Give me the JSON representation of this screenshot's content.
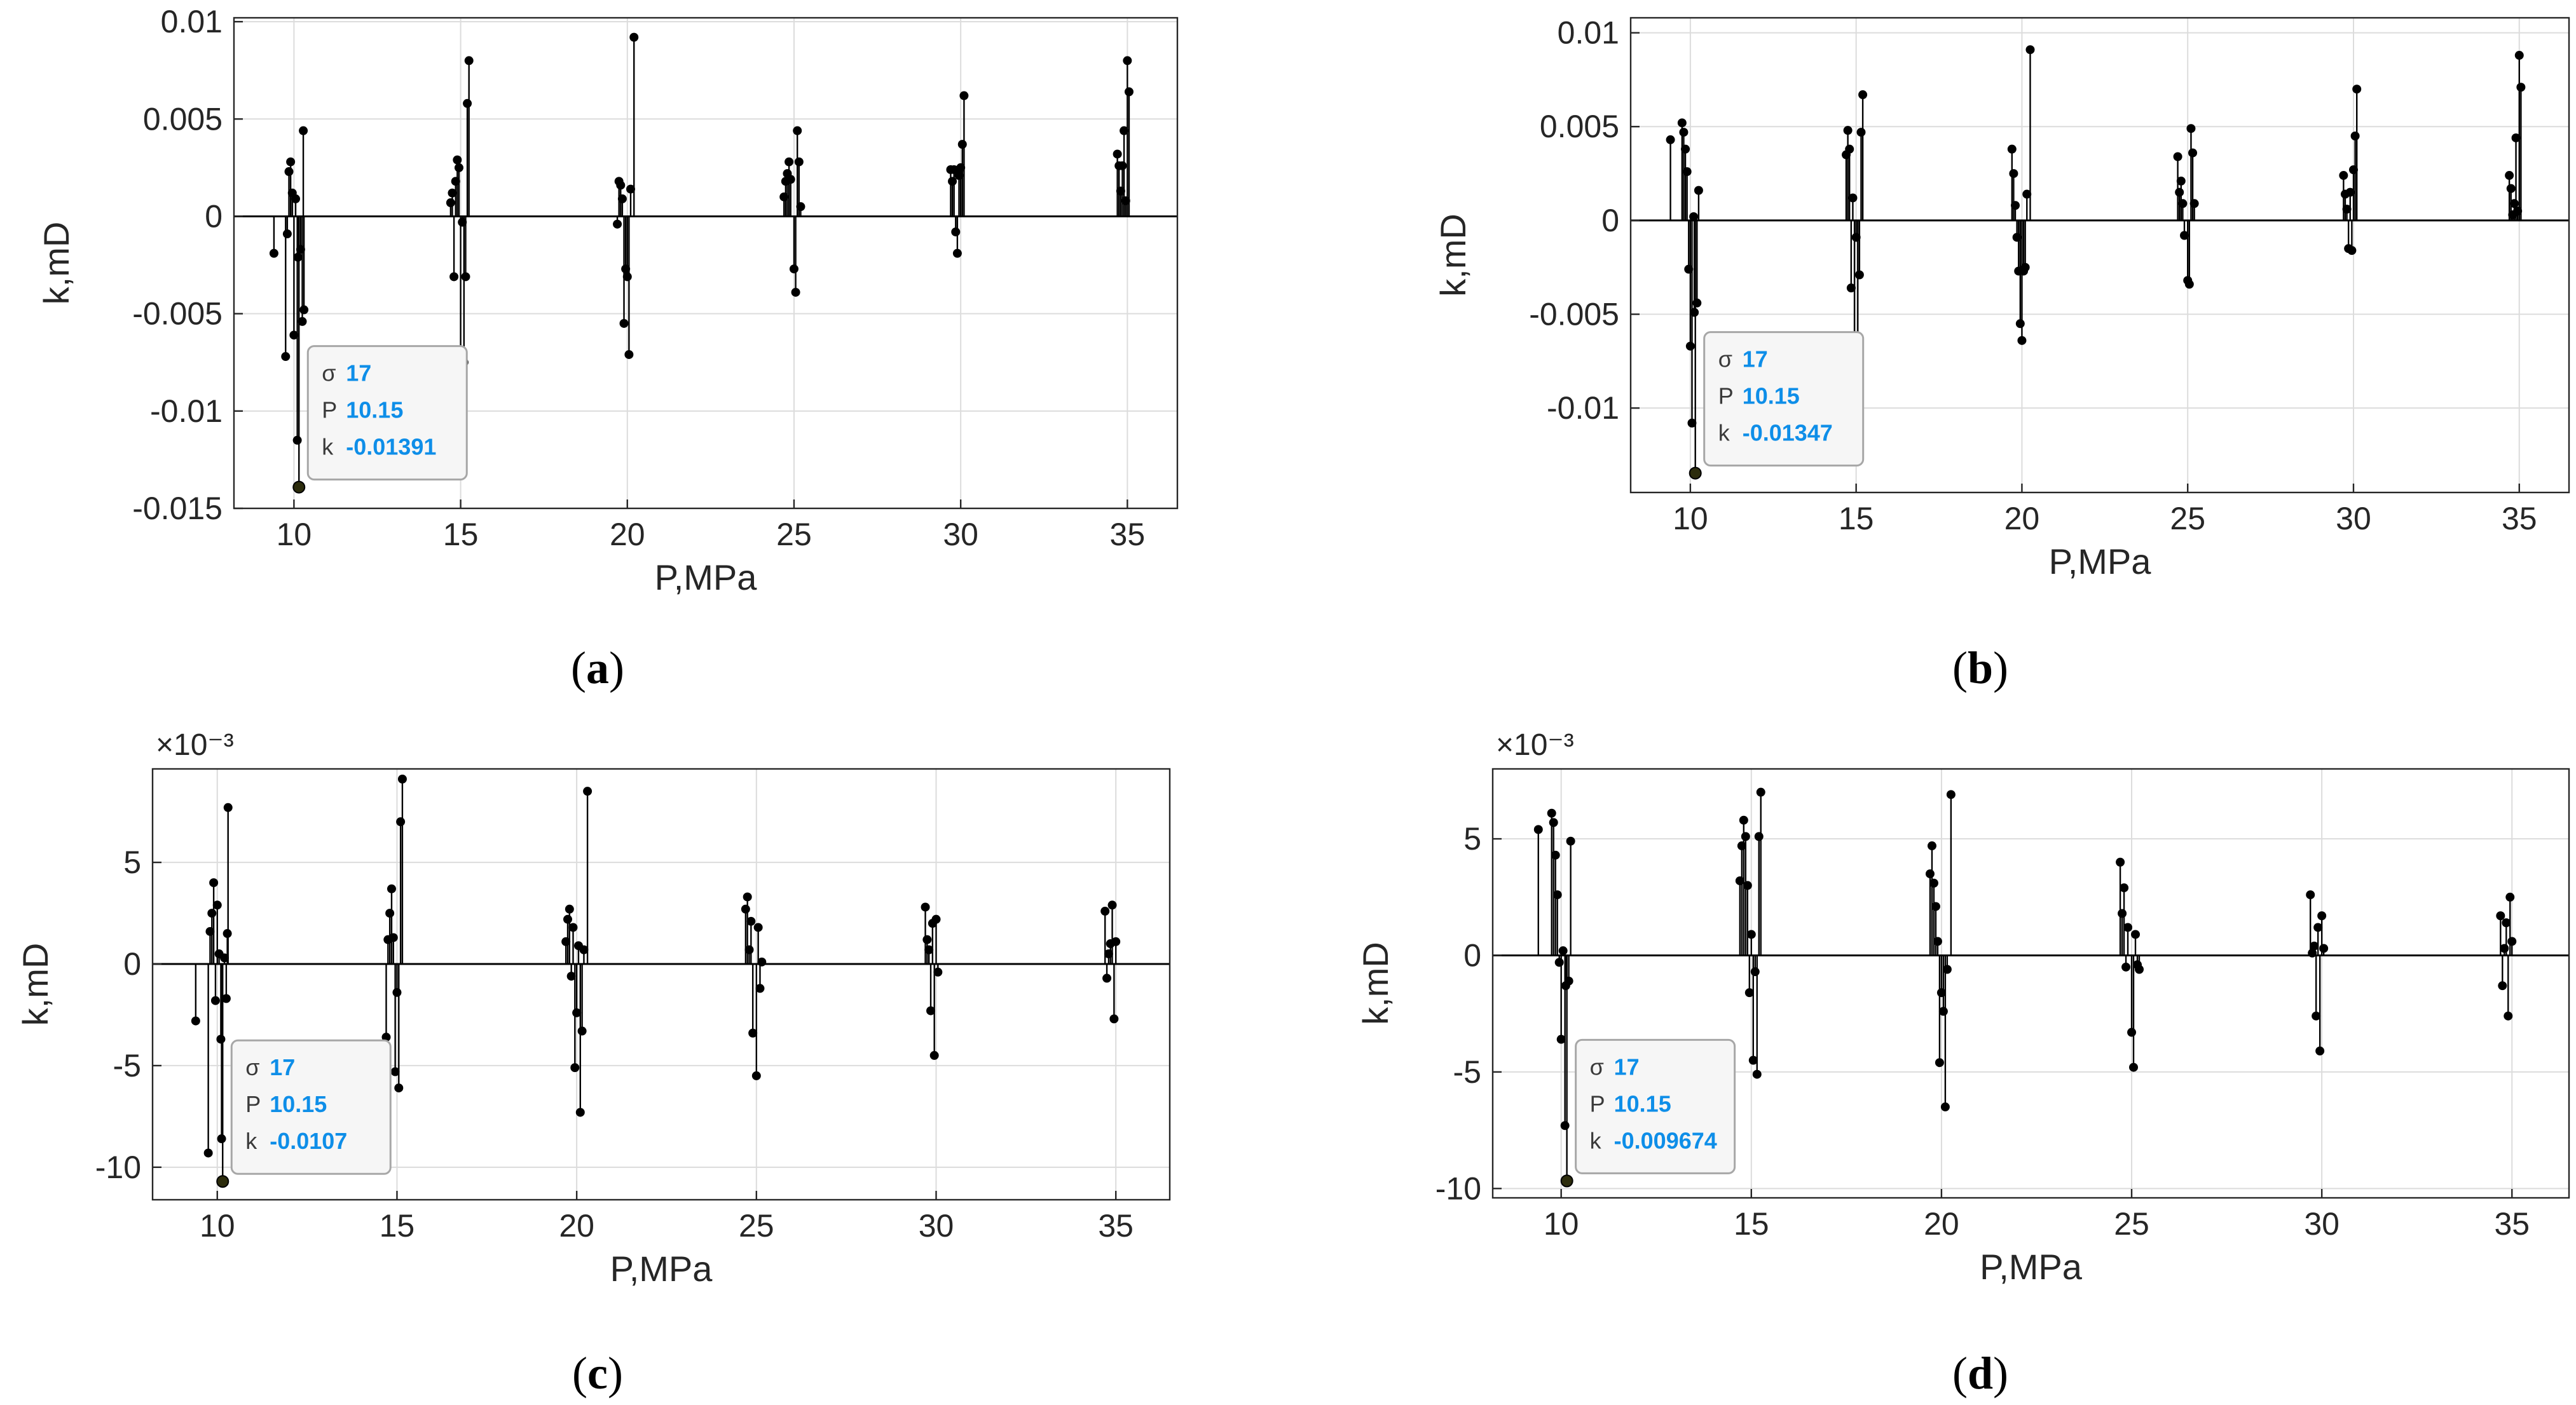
{
  "colors": {
    "axis": "#262626",
    "grid": "#dcdcdc",
    "stem": "#000000",
    "marker": "#000000",
    "baseline": "#000000",
    "datatip_value": "#0e8ee8",
    "datatip_label": "#3a3a3a",
    "datatip_border": "#a7a7a7",
    "selected_marker": "#2c2c0c"
  },
  "chart_data": [
    {
      "id": "a",
      "type": "stem",
      "caption": "a",
      "xlabel": "P,MPa",
      "ylabel": "k,mD",
      "xlim": [
        8.2,
        36.5
      ],
      "ylim": [
        -0.015,
        0.0102
      ],
      "xticks": [
        10,
        15,
        20,
        25,
        30,
        35
      ],
      "xtick_labels": [
        "10",
        "15",
        "20",
        "25",
        "30",
        "35"
      ],
      "yticks": [
        -0.015,
        -0.01,
        -0.005,
        0,
        0.005,
        0.01
      ],
      "ytick_labels": [
        "-0.015",
        "-0.01",
        "-0.005",
        "0",
        "0.005",
        "0.01"
      ],
      "exponent": "",
      "grid": true,
      "points": [
        [
          9.4,
          -0.0019
        ],
        [
          9.75,
          -0.0072
        ],
        [
          9.8,
          -0.0009
        ],
        [
          9.85,
          0.0023
        ],
        [
          9.9,
          0.0028
        ],
        [
          9.95,
          0.0012
        ],
        [
          10.0,
          -0.0061
        ],
        [
          10.05,
          0.0009
        ],
        [
          10.1,
          -0.0115
        ],
        [
          10.12,
          -0.0021
        ],
        [
          10.15,
          -0.01391
        ],
        [
          10.2,
          -0.0017
        ],
        [
          10.25,
          -0.0054
        ],
        [
          10.3,
          -0.0048
        ],
        [
          10.28,
          0.0044
        ],
        [
          14.7,
          0.0007
        ],
        [
          14.75,
          0.0012
        ],
        [
          14.8,
          -0.0031
        ],
        [
          14.85,
          0.0018
        ],
        [
          14.9,
          0.0029
        ],
        [
          14.95,
          0.0025
        ],
        [
          15.0,
          -0.0069
        ],
        [
          15.05,
          -0.0003
        ],
        [
          15.1,
          -0.0075
        ],
        [
          15.15,
          -0.0031
        ],
        [
          15.2,
          0.0058
        ],
        [
          15.25,
          0.008
        ],
        [
          19.7,
          -0.0004
        ],
        [
          19.75,
          0.0018
        ],
        [
          19.8,
          0.0016
        ],
        [
          19.85,
          0.0009
        ],
        [
          19.9,
          -0.0055
        ],
        [
          19.95,
          -0.0027
        ],
        [
          20.0,
          -0.0031
        ],
        [
          20.05,
          -0.0071
        ],
        [
          20.1,
          0.0014
        ],
        [
          20.2,
          0.0092
        ],
        [
          24.7,
          0.001
        ],
        [
          24.75,
          0.0018
        ],
        [
          24.8,
          0.0022
        ],
        [
          24.85,
          0.0028
        ],
        [
          24.9,
          0.0019
        ],
        [
          25.0,
          -0.0027
        ],
        [
          25.05,
          -0.0039
        ],
        [
          25.1,
          0.0044
        ],
        [
          25.15,
          0.0028
        ],
        [
          25.2,
          0.0005
        ],
        [
          29.7,
          0.0024
        ],
        [
          29.75,
          0.0018
        ],
        [
          29.8,
          0.0024
        ],
        [
          29.85,
          -0.0008
        ],
        [
          29.9,
          -0.0019
        ],
        [
          29.95,
          0.0021
        ],
        [
          30.0,
          0.0025
        ],
        [
          30.05,
          0.0037
        ],
        [
          30.1,
          0.0062
        ],
        [
          34.7,
          0.0032
        ],
        [
          34.75,
          0.0026
        ],
        [
          34.8,
          0.0013
        ],
        [
          34.85,
          0.0026
        ],
        [
          34.9,
          0.0044
        ],
        [
          34.95,
          0.0008
        ],
        [
          35.0,
          0.008
        ],
        [
          35.05,
          0.0064
        ]
      ],
      "selected": {
        "x": 10.15,
        "y": -0.01391
      },
      "datatip": {
        "sigma_label": "σ",
        "sigma": "17",
        "p_label": "P",
        "p": "10.15",
        "k_label": "k",
        "k": "-0.01391"
      }
    },
    {
      "id": "b",
      "type": "stem",
      "caption": "b",
      "xlabel": "P,MPa",
      "ylabel": "k,mD",
      "xlim": [
        8.2,
        36.5
      ],
      "ylim": [
        -0.0145,
        0.0108
      ],
      "xticks": [
        10,
        15,
        20,
        25,
        30,
        35
      ],
      "xtick_labels": [
        "10",
        "15",
        "20",
        "25",
        "30",
        "35"
      ],
      "yticks": [
        -0.01,
        -0.005,
        0,
        0.005,
        0.01
      ],
      "ytick_labels": [
        "-0.01",
        "-0.005",
        "0",
        "0.005",
        "0.01"
      ],
      "exponent": "",
      "grid": true,
      "points": [
        [
          9.4,
          0.0043
        ],
        [
          9.75,
          0.0052
        ],
        [
          9.8,
          0.0047
        ],
        [
          9.85,
          0.0038
        ],
        [
          9.9,
          0.0026
        ],
        [
          9.95,
          -0.0026
        ],
        [
          10.0,
          -0.0067
        ],
        [
          10.05,
          -0.0108
        ],
        [
          10.1,
          0.0002
        ],
        [
          10.12,
          -0.0049
        ],
        [
          10.15,
          -0.01347
        ],
        [
          10.2,
          -0.0044
        ],
        [
          10.25,
          0.0016
        ],
        [
          14.7,
          0.0035
        ],
        [
          14.75,
          0.0048
        ],
        [
          14.8,
          0.0038
        ],
        [
          14.85,
          -0.0036
        ],
        [
          14.9,
          0.0012
        ],
        [
          14.95,
          -0.0065
        ],
        [
          15.0,
          -0.0009
        ],
        [
          15.05,
          -0.0068
        ],
        [
          15.1,
          -0.0029
        ],
        [
          15.15,
          0.0047
        ],
        [
          15.2,
          0.0067
        ],
        [
          19.7,
          0.0038
        ],
        [
          19.75,
          0.0025
        ],
        [
          19.8,
          0.0008
        ],
        [
          19.85,
          -0.0009
        ],
        [
          19.9,
          -0.0027
        ],
        [
          19.95,
          -0.0055
        ],
        [
          20.0,
          -0.0064
        ],
        [
          20.05,
          -0.0027
        ],
        [
          20.1,
          -0.0025
        ],
        [
          20.15,
          0.0014
        ],
        [
          20.25,
          0.0091
        ],
        [
          24.7,
          0.0034
        ],
        [
          24.75,
          0.0015
        ],
        [
          24.8,
          0.0021
        ],
        [
          24.85,
          0.0009
        ],
        [
          24.9,
          -0.0008
        ],
        [
          25.0,
          -0.0032
        ],
        [
          25.05,
          -0.0034
        ],
        [
          25.1,
          0.0049
        ],
        [
          25.15,
          0.0036
        ],
        [
          25.2,
          0.0009
        ],
        [
          29.7,
          0.0024
        ],
        [
          29.75,
          0.0014
        ],
        [
          29.8,
          0.0006
        ],
        [
          29.85,
          -0.0015
        ],
        [
          29.9,
          0.0015
        ],
        [
          29.95,
          -0.0016
        ],
        [
          30.0,
          0.0027
        ],
        [
          30.05,
          0.0045
        ],
        [
          30.1,
          0.007
        ],
        [
          34.7,
          0.0024
        ],
        [
          34.75,
          0.0017
        ],
        [
          34.8,
          0.0003
        ],
        [
          34.85,
          0.0009
        ],
        [
          34.9,
          0.0044
        ],
        [
          34.95,
          0.0005
        ],
        [
          35.0,
          0.0088
        ],
        [
          35.05,
          0.0071
        ]
      ],
      "selected": {
        "x": 10.15,
        "y": -0.01347
      },
      "datatip": {
        "sigma_label": "σ",
        "sigma": "17",
        "p_label": "P",
        "p": "10.15",
        "k_label": "k",
        "k": "-0.01347"
      }
    },
    {
      "id": "c",
      "type": "stem",
      "caption": "c",
      "xlabel": "P,MPa",
      "ylabel": "k,mD",
      "xlim": [
        8.2,
        36.5
      ],
      "ylim": [
        -11.6,
        9.6
      ],
      "xticks": [
        10,
        15,
        20,
        25,
        30,
        35
      ],
      "xtick_labels": [
        "10",
        "15",
        "20",
        "25",
        "30",
        "35"
      ],
      "yticks": [
        -10,
        -5,
        0,
        5
      ],
      "ytick_labels": [
        "-10",
        "-5",
        "0",
        "5"
      ],
      "exponent": "×10⁻³",
      "grid": true,
      "points": [
        [
          9.4,
          -2.8
        ],
        [
          9.75,
          -9.3
        ],
        [
          9.8,
          1.6
        ],
        [
          9.85,
          2.5
        ],
        [
          9.9,
          4.0
        ],
        [
          9.95,
          -1.8
        ],
        [
          10.0,
          2.9
        ],
        [
          10.05,
          0.5
        ],
        [
          10.1,
          -3.7
        ],
        [
          10.12,
          -8.6
        ],
        [
          10.15,
          -10.7
        ],
        [
          10.2,
          0.3
        ],
        [
          10.25,
          -1.7
        ],
        [
          10.28,
          1.5
        ],
        [
          10.3,
          7.7
        ],
        [
          14.7,
          -3.6
        ],
        [
          14.75,
          1.2
        ],
        [
          14.8,
          2.5
        ],
        [
          14.85,
          3.7
        ],
        [
          14.9,
          1.3
        ],
        [
          14.95,
          -5.3
        ],
        [
          15.0,
          -1.4
        ],
        [
          15.05,
          -6.1
        ],
        [
          15.1,
          7.0
        ],
        [
          15.15,
          9.1
        ],
        [
          19.7,
          1.1
        ],
        [
          19.75,
          2.2
        ],
        [
          19.8,
          2.7
        ],
        [
          19.85,
          -0.6
        ],
        [
          19.9,
          1.8
        ],
        [
          19.95,
          -5.1
        ],
        [
          20.0,
          -2.4
        ],
        [
          20.05,
          0.9
        ],
        [
          20.1,
          -7.3
        ],
        [
          20.15,
          -3.3
        ],
        [
          20.2,
          0.7
        ],
        [
          20.3,
          8.5
        ],
        [
          24.7,
          2.7
        ],
        [
          24.75,
          3.3
        ],
        [
          24.8,
          0.7
        ],
        [
          24.85,
          2.1
        ],
        [
          24.9,
          -3.4
        ],
        [
          25.0,
          -5.5
        ],
        [
          25.05,
          1.8
        ],
        [
          25.1,
          -1.2
        ],
        [
          25.15,
          0.1
        ],
        [
          29.7,
          2.8
        ],
        [
          29.75,
          1.2
        ],
        [
          29.8,
          0.7
        ],
        [
          29.85,
          -2.3
        ],
        [
          29.9,
          2.0
        ],
        [
          29.95,
          -4.5
        ],
        [
          30.0,
          2.2
        ],
        [
          30.05,
          -0.4
        ],
        [
          34.7,
          2.6
        ],
        [
          34.75,
          -0.7
        ],
        [
          34.8,
          0.5
        ],
        [
          34.85,
          1.0
        ],
        [
          34.9,
          2.9
        ],
        [
          34.95,
          -2.7
        ],
        [
          35.0,
          1.1
        ]
      ],
      "selected": {
        "x": 10.15,
        "y": -10.7
      },
      "datatip": {
        "sigma_label": "σ",
        "sigma": "17",
        "p_label": "P",
        "p": "10.15",
        "k_label": "k",
        "k": "-0.0107"
      }
    },
    {
      "id": "d",
      "type": "stem",
      "caption": "d",
      "xlabel": "P,MPa",
      "ylabel": "k,mD",
      "xlim": [
        8.2,
        36.5
      ],
      "ylim": [
        -10.4,
        8.0
      ],
      "xticks": [
        10,
        15,
        20,
        25,
        30,
        35
      ],
      "xtick_labels": [
        "10",
        "15",
        "20",
        "25",
        "30",
        "35"
      ],
      "yticks": [
        -10,
        -5,
        0,
        5
      ],
      "ytick_labels": [
        "-10",
        "-5",
        "0",
        "5"
      ],
      "exponent": "×10⁻³",
      "grid": true,
      "points": [
        [
          9.4,
          5.4
        ],
        [
          9.75,
          6.1
        ],
        [
          9.8,
          5.7
        ],
        [
          9.85,
          4.3
        ],
        [
          9.9,
          2.6
        ],
        [
          9.95,
          -0.3
        ],
        [
          10.0,
          -3.6
        ],
        [
          10.05,
          0.2
        ],
        [
          10.1,
          -7.3
        ],
        [
          10.12,
          -1.3
        ],
        [
          10.15,
          -9.674
        ],
        [
          10.2,
          -1.1
        ],
        [
          10.25,
          4.9
        ],
        [
          14.7,
          3.2
        ],
        [
          14.75,
          4.7
        ],
        [
          14.8,
          5.8
        ],
        [
          14.85,
          5.1
        ],
        [
          14.9,
          3.0
        ],
        [
          14.95,
          -1.6
        ],
        [
          15.0,
          0.9
        ],
        [
          15.05,
          -4.5
        ],
        [
          15.1,
          -0.7
        ],
        [
          15.15,
          -5.1
        ],
        [
          15.2,
          5.1
        ],
        [
          15.25,
          7.0
        ],
        [
          19.7,
          3.5
        ],
        [
          19.75,
          4.7
        ],
        [
          19.8,
          3.1
        ],
        [
          19.85,
          2.1
        ],
        [
          19.9,
          0.6
        ],
        [
          19.95,
          -4.6
        ],
        [
          20.0,
          -1.6
        ],
        [
          20.05,
          -2.4
        ],
        [
          20.1,
          -6.5
        ],
        [
          20.15,
          -0.6
        ],
        [
          20.25,
          6.9
        ],
        [
          24.7,
          4.0
        ],
        [
          24.75,
          1.8
        ],
        [
          24.8,
          2.9
        ],
        [
          24.85,
          -0.5
        ],
        [
          24.9,
          1.2
        ],
        [
          25.0,
          -3.3
        ],
        [
          25.05,
          -4.8
        ],
        [
          25.1,
          0.9
        ],
        [
          25.15,
          -0.4
        ],
        [
          25.2,
          -0.6
        ],
        [
          29.7,
          2.6
        ],
        [
          29.75,
          0.1
        ],
        [
          29.8,
          0.4
        ],
        [
          29.85,
          -2.6
        ],
        [
          29.9,
          1.2
        ],
        [
          29.95,
          -4.1
        ],
        [
          30.0,
          1.7
        ],
        [
          30.05,
          0.3
        ],
        [
          34.7,
          1.7
        ],
        [
          34.75,
          -1.3
        ],
        [
          34.8,
          0.3
        ],
        [
          34.85,
          1.4
        ],
        [
          34.9,
          -2.6
        ],
        [
          34.95,
          2.5
        ],
        [
          35.0,
          0.6
        ]
      ],
      "selected": {
        "x": 10.15,
        "y": -9.674
      },
      "datatip": {
        "sigma_label": "σ",
        "sigma": "17",
        "p_label": "P",
        "p": "10.15",
        "k_label": "k",
        "k": "-0.009674"
      }
    }
  ]
}
